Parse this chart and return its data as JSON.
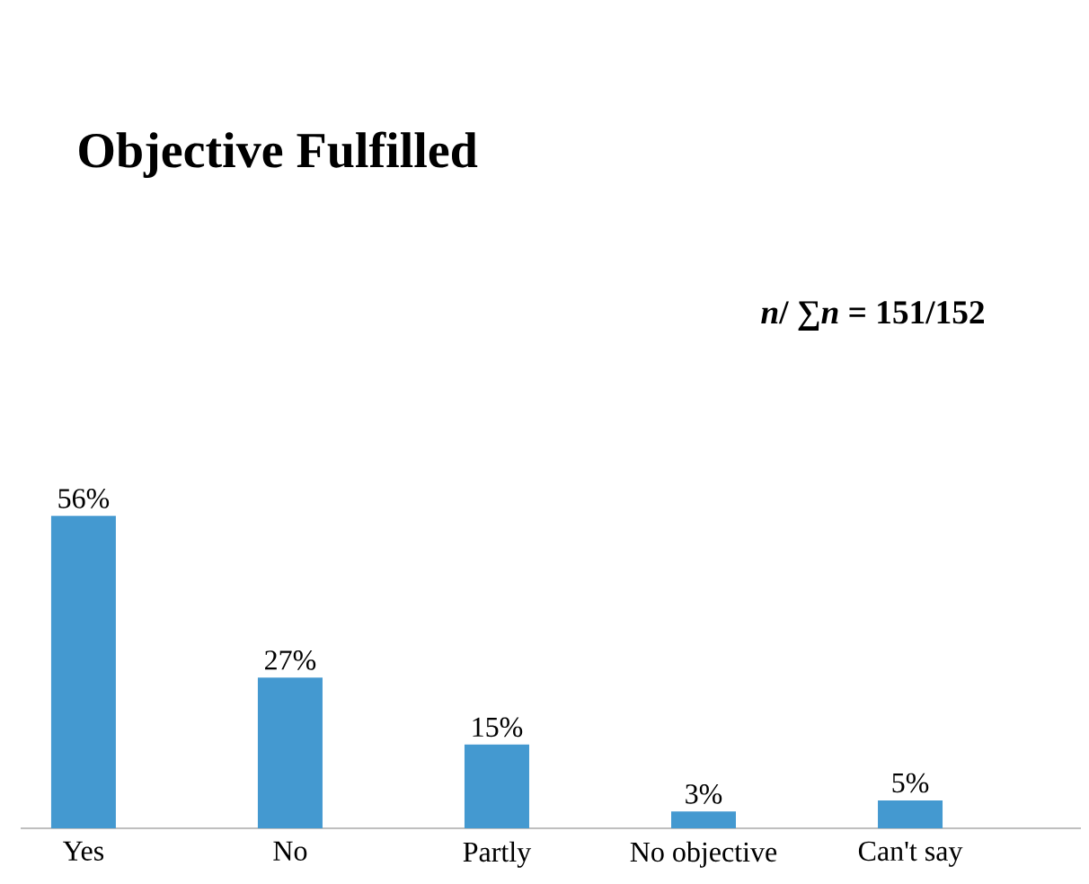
{
  "chart_data": {
    "type": "bar",
    "title": "Objective Fulfilled",
    "categories": [
      "Yes",
      "No",
      "Partly",
      "No objective",
      "Can't say"
    ],
    "values": [
      56,
      27,
      15,
      3,
      5
    ],
    "value_labels": [
      "56%",
      "27%",
      "15%",
      "3%",
      "5%"
    ],
    "color": "#4499d0",
    "annotations": [
      "*n*/ ∑*n* = 151/152"
    ]
  }
}
